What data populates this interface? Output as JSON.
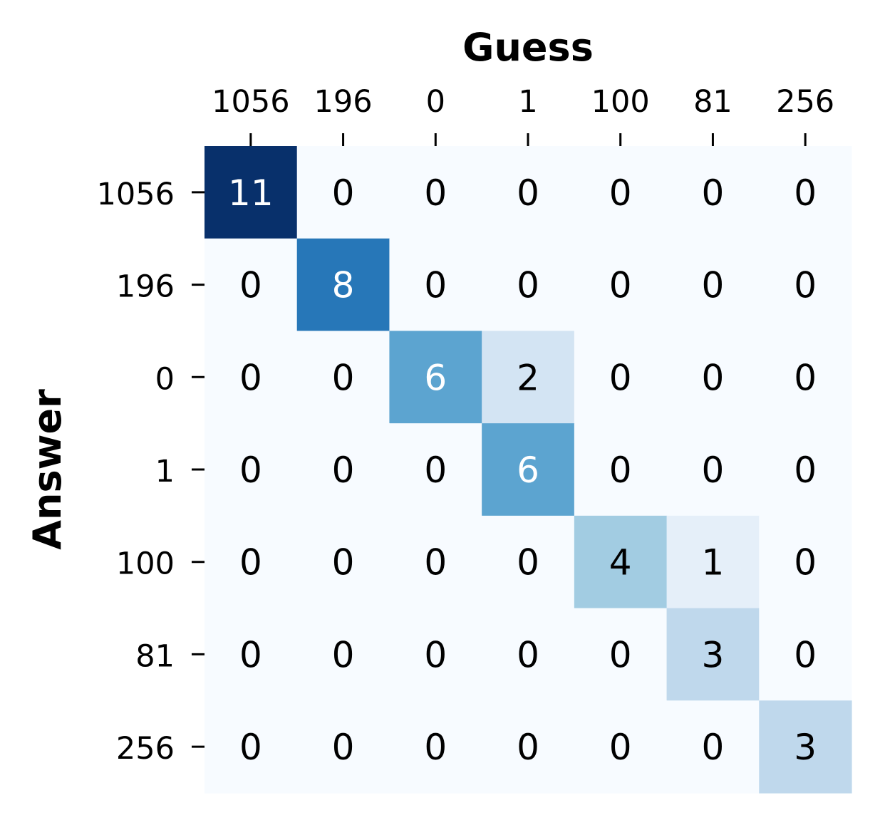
{
  "chart_data": {
    "type": "heatmap",
    "title": "",
    "xlabel": "Guess",
    "ylabel": "Answer",
    "x_categories": [
      "1056",
      "196",
      "0",
      "1",
      "100",
      "81",
      "256"
    ],
    "y_categories": [
      "1056",
      "196",
      "0",
      "1",
      "100",
      "81",
      "256"
    ],
    "matrix": [
      [
        11,
        0,
        0,
        0,
        0,
        0,
        0
      ],
      [
        0,
        8,
        0,
        0,
        0,
        0,
        0
      ],
      [
        0,
        0,
        6,
        2,
        0,
        0,
        0
      ],
      [
        0,
        0,
        0,
        6,
        0,
        0,
        0
      ],
      [
        0,
        0,
        0,
        0,
        4,
        1,
        0
      ],
      [
        0,
        0,
        0,
        0,
        0,
        3,
        0
      ],
      [
        0,
        0,
        0,
        0,
        0,
        0,
        3
      ]
    ],
    "value_range": [
      0,
      11
    ],
    "colormap": "Blues",
    "colorbar": false,
    "x_axis_position": "top",
    "grid": false
  }
}
